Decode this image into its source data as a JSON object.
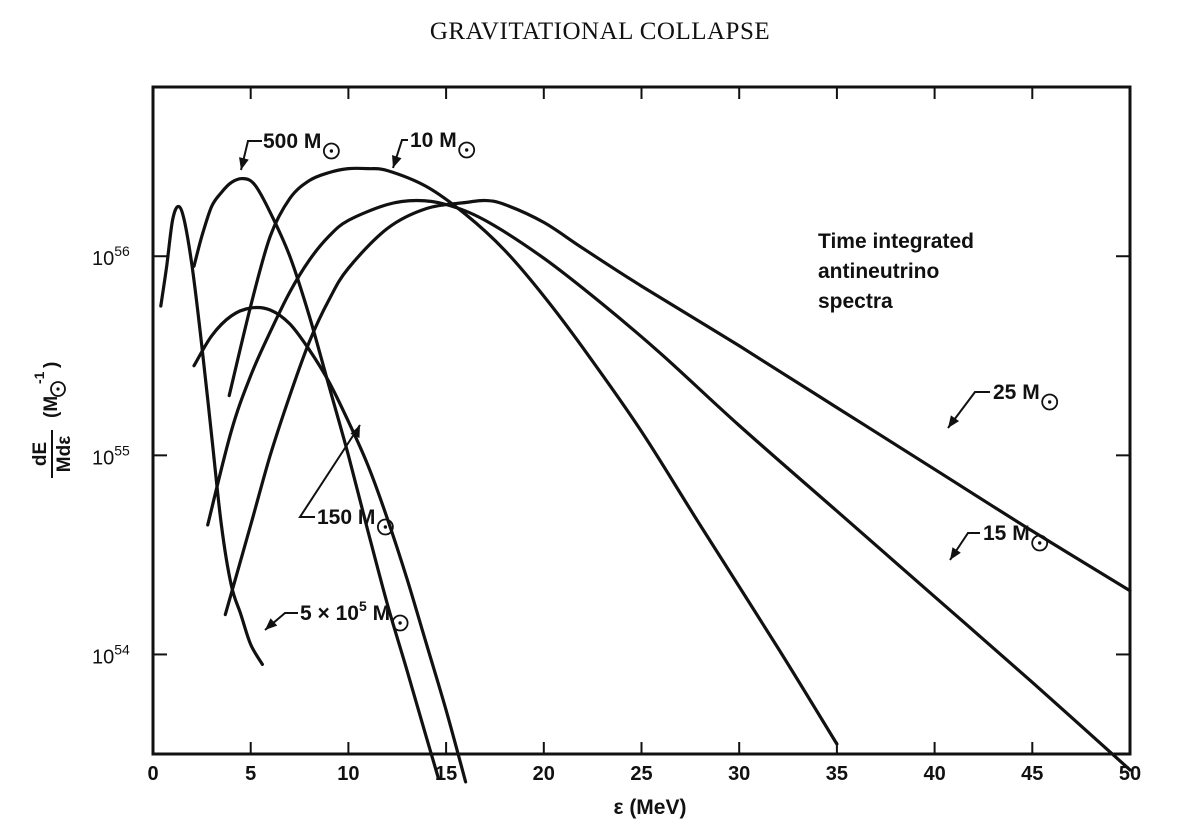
{
  "page_title": "GRAVITATIONAL COLLAPSE",
  "chart_data": {
    "type": "line",
    "title": "GRAVITATIONAL COLLAPSE",
    "xlabel": "ε (MeV)",
    "ylabel": {
      "numerator": "dE",
      "denominator": "Mdε",
      "unit_prefix": "(M",
      "unit_exponent": "-1",
      "unit_suffix": ")"
    },
    "xlim": [
      0,
      50
    ],
    "ylim_log10": [
      53.5,
      56.85
    ],
    "y_scale": "log",
    "grid": false,
    "x_ticks": [
      0,
      5,
      10,
      15,
      20,
      25,
      30,
      35,
      40,
      45,
      50
    ],
    "x_tick_labels": [
      "0",
      "5",
      "10",
      "15",
      "20",
      "25",
      "30",
      "35",
      "40",
      "45",
      "50"
    ],
    "y_ticks": [
      {
        "log10": 56,
        "base": "10",
        "exp": "56"
      },
      {
        "log10": 55,
        "base": "10",
        "exp": "55"
      },
      {
        "log10": 54,
        "base": "10",
        "exp": "54"
      }
    ],
    "annotation": [
      "Time integrated",
      "antineutrino",
      "spectra"
    ],
    "series": [
      {
        "name": "5 × 10⁵ M☉",
        "points_log10": [
          [
            0.4,
            55.75
          ],
          [
            0.7,
            55.95
          ],
          [
            1.0,
            56.18
          ],
          [
            1.3,
            56.25
          ],
          [
            1.6,
            56.18
          ],
          [
            2.0,
            55.95
          ],
          [
            2.5,
            55.55
          ],
          [
            3.0,
            55.1
          ],
          [
            3.5,
            54.65
          ],
          [
            4.0,
            54.35
          ],
          [
            4.5,
            54.2
          ],
          [
            5.0,
            54.05
          ],
          [
            5.6,
            53.95
          ]
        ]
      },
      {
        "name": "500 M☉",
        "points_log10": [
          [
            2.1,
            55.95
          ],
          [
            2.5,
            56.1
          ],
          [
            3.0,
            56.25
          ],
          [
            3.5,
            56.32
          ],
          [
            4.0,
            56.37
          ],
          [
            4.6,
            56.39
          ],
          [
            5.2,
            56.36
          ],
          [
            6.0,
            56.22
          ],
          [
            7.0,
            56.0
          ],
          [
            8.0,
            55.7
          ],
          [
            9.0,
            55.35
          ],
          [
            10.0,
            55.0
          ],
          [
            11.0,
            54.62
          ],
          [
            12.0,
            54.25
          ],
          [
            13.0,
            53.92
          ],
          [
            14.0,
            53.58
          ],
          [
            14.6,
            53.38
          ]
        ]
      },
      {
        "name": "150 M☉",
        "points_log10": [
          [
            2.1,
            55.45
          ],
          [
            3.0,
            55.6
          ],
          [
            4.0,
            55.7
          ],
          [
            5.0,
            55.74
          ],
          [
            6.0,
            55.73
          ],
          [
            7.0,
            55.66
          ],
          [
            8.0,
            55.53
          ],
          [
            9.0,
            55.37
          ],
          [
            10.0,
            55.17
          ],
          [
            11.0,
            54.95
          ],
          [
            12.0,
            54.68
          ],
          [
            13.0,
            54.38
          ],
          [
            14.0,
            54.05
          ],
          [
            15.0,
            53.72
          ],
          [
            16.0,
            53.36
          ]
        ]
      },
      {
        "name": "10 M☉",
        "points_log10": [
          [
            3.9,
            55.3
          ],
          [
            5.0,
            55.75
          ],
          [
            6.0,
            56.1
          ],
          [
            7.0,
            56.29
          ],
          [
            8.0,
            56.38
          ],
          [
            9.0,
            56.42
          ],
          [
            10.0,
            56.44
          ],
          [
            11.0,
            56.44
          ],
          [
            12.0,
            56.43
          ],
          [
            14.0,
            56.35
          ],
          [
            16.0,
            56.21
          ],
          [
            18.0,
            56.03
          ],
          [
            20.0,
            55.8
          ],
          [
            22.0,
            55.54
          ],
          [
            25.0,
            55.12
          ],
          [
            28.0,
            54.65
          ],
          [
            32.0,
            54.03
          ],
          [
            35.0,
            53.55
          ]
        ]
      },
      {
        "name": "15 M☉",
        "points_log10": [
          [
            2.8,
            54.65
          ],
          [
            4.0,
            55.12
          ],
          [
            5.0,
            55.4
          ],
          [
            6.0,
            55.62
          ],
          [
            7.0,
            55.82
          ],
          [
            8.0,
            55.98
          ],
          [
            9.0,
            56.1
          ],
          [
            10.0,
            56.18
          ],
          [
            12.0,
            56.26
          ],
          [
            13.5,
            56.28
          ],
          [
            15.0,
            56.26
          ],
          [
            17.0,
            56.18
          ],
          [
            20.0,
            55.99
          ],
          [
            23.0,
            55.76
          ],
          [
            26.0,
            55.51
          ],
          [
            30.0,
            55.15
          ],
          [
            35.0,
            54.72
          ],
          [
            40.0,
            54.29
          ],
          [
            45.0,
            53.86
          ],
          [
            50.0,
            53.42
          ]
        ]
      },
      {
        "name": "25 M☉",
        "points_log10": [
          [
            3.7,
            54.2
          ],
          [
            5.0,
            54.65
          ],
          [
            6.0,
            55.0
          ],
          [
            7.0,
            55.3
          ],
          [
            8.0,
            55.57
          ],
          [
            9.0,
            55.78
          ],
          [
            10.0,
            55.94
          ],
          [
            12.0,
            56.14
          ],
          [
            14.0,
            56.24
          ],
          [
            16.0,
            56.27
          ],
          [
            17.0,
            56.28
          ],
          [
            18.0,
            56.26
          ],
          [
            20.0,
            56.17
          ],
          [
            22.0,
            56.04
          ],
          [
            25.0,
            55.85
          ],
          [
            30.0,
            55.55
          ],
          [
            35.0,
            55.24
          ],
          [
            40.0,
            54.93
          ],
          [
            45.0,
            54.62
          ],
          [
            50.0,
            54.32
          ]
        ]
      }
    ],
    "labels": [
      {
        "series": "500 M☉",
        "text": "500 M"
      },
      {
        "series": "10 M☉",
        "text": "10 M"
      },
      {
        "series": "150 M☉",
        "text": "150 M"
      },
      {
        "series": "5 × 10⁵ M☉",
        "text": "5 × 10",
        "sup": "5",
        "suffix": " M"
      },
      {
        "series": "25 M☉",
        "text": "25 M"
      },
      {
        "series": "15 M☉",
        "text": "15 M"
      }
    ]
  }
}
